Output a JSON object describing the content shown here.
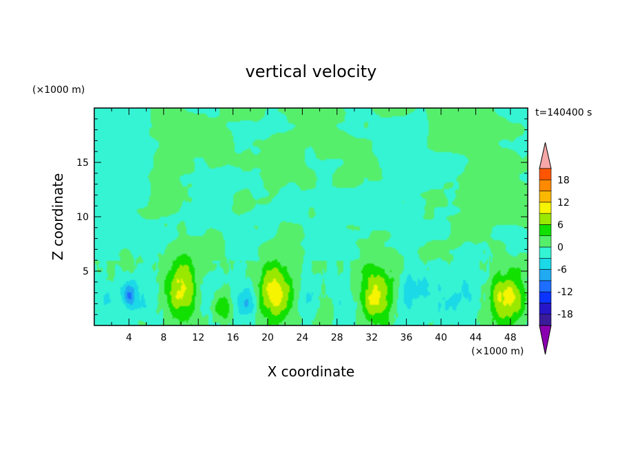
{
  "chart_data": {
    "type": "heatmap",
    "title": "vertical velocity",
    "xlabel": "X coordinate",
    "ylabel": "Z coordinate",
    "x_unit": "(×1000 m)",
    "y_unit": "(×1000 m)",
    "time_label": "t=140400 s",
    "xlim": [
      0,
      50
    ],
    "ylim": [
      0,
      20
    ],
    "x_ticks": [
      4,
      8,
      12,
      16,
      20,
      24,
      28,
      32,
      36,
      40,
      44,
      48
    ],
    "y_ticks": [
      5,
      10,
      15
    ],
    "colorbar": {
      "ticks": [
        18,
        12,
        6,
        0,
        -6,
        -12,
        -18
      ],
      "levels": [
        -21,
        -18,
        -15,
        -12,
        -9,
        -6,
        -3,
        0,
        3,
        6,
        9,
        12,
        15,
        18,
        21
      ],
      "colors": [
        "#8a00b0",
        "#3a1c9a",
        "#2616c8",
        "#0c34ff",
        "#1e6eff",
        "#21a9f2",
        "#1bd9e6",
        "#35f4d4",
        "#56ef6c",
        "#11e000",
        "#9ae800",
        "#f6f400",
        "#fbb800",
        "#ff8a00",
        "#ff5500",
        "#ff2200",
        "#f7a7a7"
      ]
    },
    "updrafts": [
      {
        "x": 10.0,
        "z": 3.3,
        "peak": 11,
        "sx": 1.4,
        "sz": 1.9
      },
      {
        "x": 21.0,
        "z": 2.9,
        "peak": 12,
        "sx": 1.5,
        "sz": 1.8
      },
      {
        "x": 32.5,
        "z": 2.8,
        "peak": 11,
        "sx": 1.5,
        "sz": 1.8
      },
      {
        "x": 47.5,
        "z": 2.4,
        "peak": 11,
        "sx": 1.4,
        "sz": 1.6
      },
      {
        "x": 14.8,
        "z": 1.5,
        "peak": 6,
        "sx": 0.8,
        "sz": 1.0
      },
      {
        "x": 26.5,
        "z": 1.5,
        "peak": 3.5,
        "sx": 0.8,
        "sz": 0.9
      },
      {
        "x": 3.5,
        "z": 6.2,
        "peak": 3,
        "sx": 0.5,
        "sz": 0.6
      }
    ],
    "downdrafts": [
      {
        "x": 4.0,
        "z": 2.7,
        "peak": -8,
        "sx": 0.6,
        "sz": 0.8
      },
      {
        "x": 1.5,
        "z": 2.4,
        "peak": -4,
        "sx": 0.8,
        "sz": 0.8
      },
      {
        "x": 17.5,
        "z": 2.4,
        "peak": -6,
        "sx": 0.8,
        "sz": 1.2
      },
      {
        "x": 6.5,
        "z": 3.2,
        "peak": -3,
        "sx": 1.3,
        "sz": 1.5
      },
      {
        "x": 13.0,
        "z": 3.5,
        "peak": -3,
        "sx": 1.0,
        "sz": 1.5
      },
      {
        "x": 24.5,
        "z": 3.0,
        "peak": -3,
        "sx": 1.2,
        "sz": 1.5
      },
      {
        "x": 29.0,
        "z": 3.0,
        "peak": -3,
        "sx": 1.5,
        "sz": 1.5
      },
      {
        "x": 36.5,
        "z": 3.0,
        "peak": -3.5,
        "sx": 2.0,
        "sz": 1.5
      },
      {
        "x": 42.5,
        "z": 3.0,
        "peak": -3,
        "sx": 1.8,
        "sz": 1.5
      }
    ]
  }
}
